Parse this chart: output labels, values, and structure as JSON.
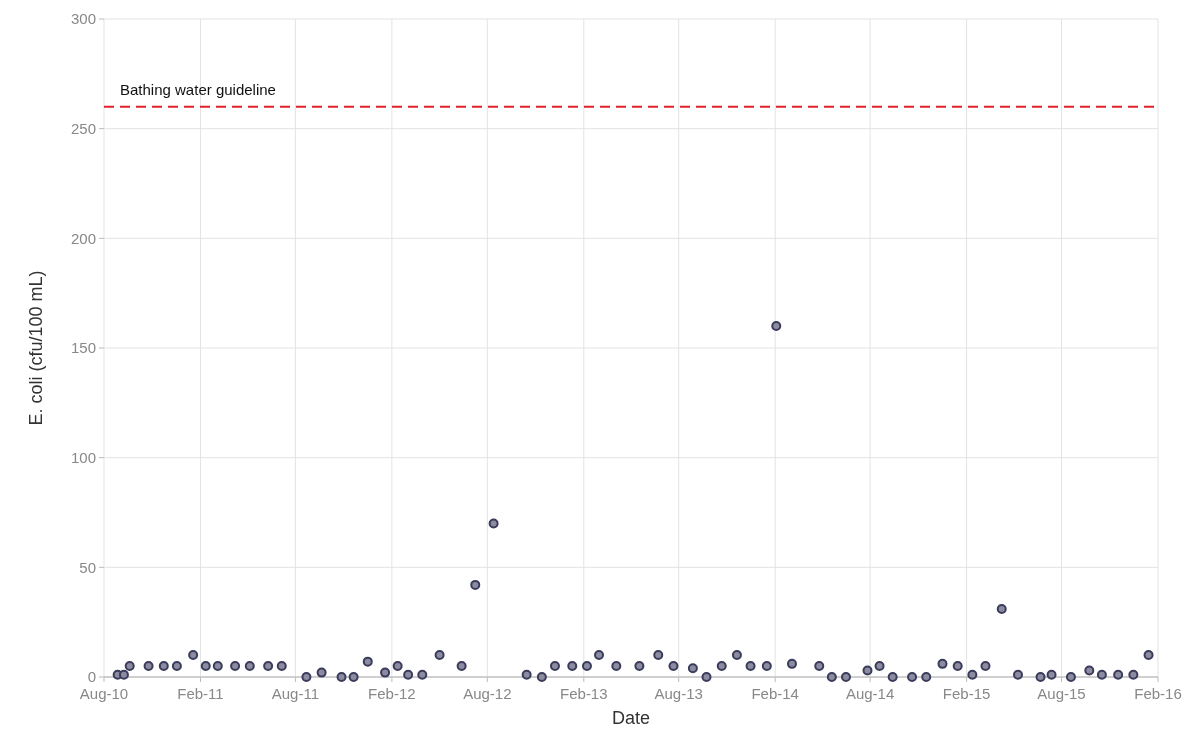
{
  "chart_data": {
    "type": "scatter",
    "xlabel": "Date",
    "ylabel": "E. coli (cfu/100 mL)",
    "x": [
      "2010-08-27",
      "2010-09-08",
      "2010-09-19",
      "2010-10-25",
      "2010-11-23",
      "2010-12-18",
      "2011-01-18",
      "2011-02-11",
      "2011-03-06",
      "2011-04-08",
      "2011-05-06",
      "2011-06-10",
      "2011-07-06",
      "2011-08-22",
      "2011-09-20",
      "2011-10-28",
      "2011-11-20",
      "2011-12-17",
      "2012-01-19",
      "2012-02-12",
      "2012-03-03",
      "2012-03-30",
      "2012-05-02",
      "2012-06-13",
      "2012-07-09",
      "2012-08-13",
      "2012-10-15",
      "2012-11-13",
      "2012-12-08",
      "2013-01-10",
      "2013-02-07",
      "2013-03-02",
      "2013-04-04",
      "2013-05-18",
      "2013-06-23",
      "2013-07-22",
      "2013-08-28",
      "2013-09-23",
      "2013-10-22",
      "2013-11-20",
      "2013-12-16",
      "2014-01-16",
      "2014-02-03",
      "2014-03-05",
      "2014-04-26",
      "2014-05-20",
      "2014-06-16",
      "2014-07-27",
      "2014-08-19",
      "2014-09-13",
      "2014-10-20",
      "2014-11-16",
      "2014-12-17",
      "2015-01-15",
      "2015-02-12",
      "2015-03-09",
      "2015-04-09",
      "2015-05-10",
      "2015-06-22",
      "2015-07-13",
      "2015-08-19",
      "2015-09-23",
      "2015-10-17",
      "2015-11-17",
      "2015-12-16",
      "2016-01-14"
    ],
    "series": [
      {
        "color": "#3b3b5c",
        "values": [
          1,
          1,
          5,
          5,
          5,
          5,
          10,
          5,
          5,
          5,
          5,
          5,
          5,
          0,
          2,
          0,
          0,
          7,
          2,
          5,
          1,
          1,
          10,
          5,
          42,
          70,
          1,
          0,
          5,
          5,
          5,
          10,
          5,
          5,
          10,
          5,
          4,
          0,
          5,
          10,
          5,
          5,
          160,
          6,
          5,
          0,
          0,
          3,
          5,
          0,
          0,
          0,
          6,
          5,
          1,
          5,
          31,
          1,
          0,
          1,
          0,
          3,
          1,
          1,
          1,
          10
        ]
      }
    ],
    "marker": "circle",
    "grid": true,
    "xlim": [
      "2010-08-01",
      "2016-02-01"
    ],
    "xticks": [
      {
        "value": "2010-08-01",
        "label": "Aug-10"
      },
      {
        "value": "2011-02-01",
        "label": "Feb-11"
      },
      {
        "value": "2011-08-01",
        "label": "Aug-11"
      },
      {
        "value": "2012-02-01",
        "label": "Feb-12"
      },
      {
        "value": "2012-08-01",
        "label": "Aug-12"
      },
      {
        "value": "2013-02-01",
        "label": "Feb-13"
      },
      {
        "value": "2013-08-01",
        "label": "Aug-13"
      },
      {
        "value": "2014-02-01",
        "label": "Feb-14"
      },
      {
        "value": "2014-08-01",
        "label": "Aug-14"
      },
      {
        "value": "2015-02-01",
        "label": "Feb-15"
      },
      {
        "value": "2015-08-01",
        "label": "Aug-15"
      },
      {
        "value": "2016-02-01",
        "label": "Feb-16"
      }
    ],
    "ylim": [
      0,
      300
    ],
    "yticks": [
      0,
      50,
      100,
      150,
      200,
      250,
      300
    ],
    "ref_lines": [
      {
        "axis": "y",
        "value": 260,
        "label": "Bathing water guideline",
        "color": "#e0202a",
        "line_style": "dashed"
      }
    ]
  }
}
